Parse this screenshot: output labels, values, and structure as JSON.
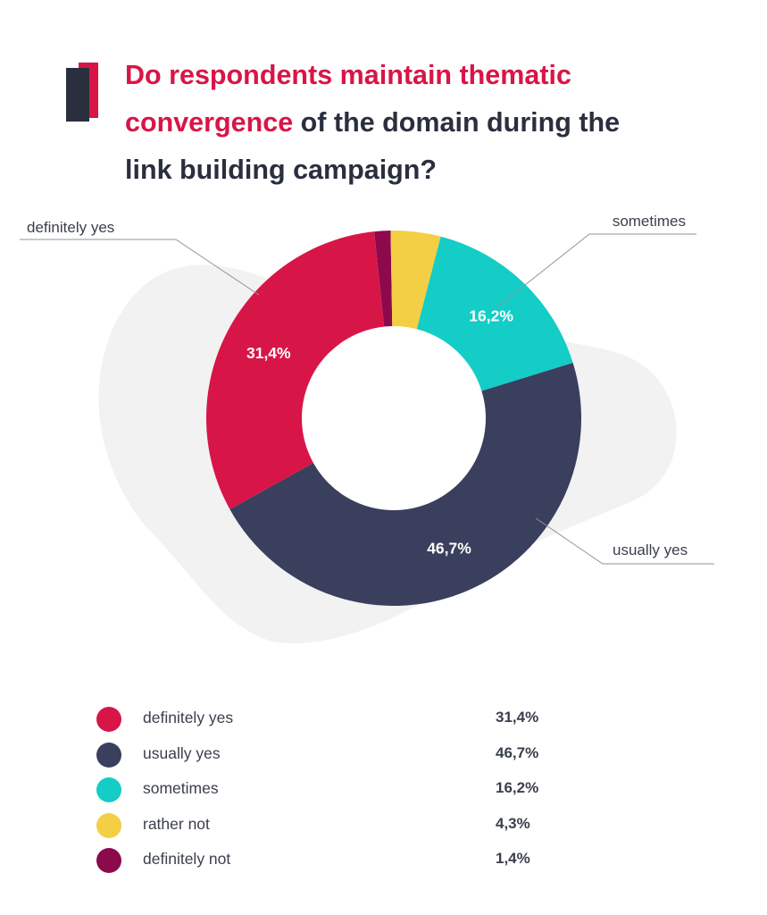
{
  "title": {
    "accent_part_1": "Do respondents maintain thematic",
    "accent_part_2": "convergence",
    "rest_part_1": " of the domain during the",
    "rest_part_2": "link building campaign?"
  },
  "colors": {
    "accent": "#d81547",
    "dark": "#2a2f3e",
    "background_blob": "#f2f2f2"
  },
  "chart_data": {
    "type": "pie",
    "variant": "donut",
    "title": "Do respondents maintain thematic convergence of the domain during the link building campaign?",
    "categories": [
      "definitely yes",
      "usually yes",
      "sometimes",
      "rather not",
      "definitely not"
    ],
    "values": [
      31.4,
      46.7,
      16.2,
      4.3,
      1.4
    ],
    "value_labels": [
      "31,4%",
      "46,7%",
      "16,2%",
      "4,3%",
      "1,4%"
    ],
    "colors": [
      "#d81547",
      "#3a3f5e",
      "#13cdc6",
      "#f2cf45",
      "#8c0a4b"
    ],
    "callouts": [
      "definitely yes",
      "sometimes",
      "usually yes"
    ]
  }
}
